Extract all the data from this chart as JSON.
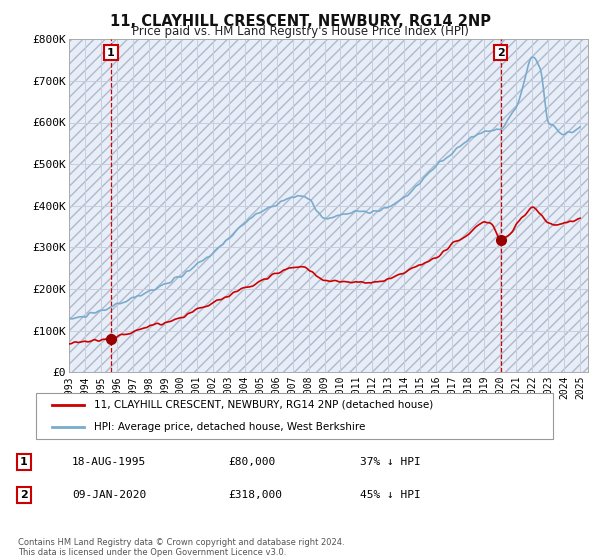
{
  "title": "11, CLAYHILL CRESCENT, NEWBURY, RG14 2NP",
  "subtitle": "Price paid vs. HM Land Registry's House Price Index (HPI)",
  "ylabel_ticks": [
    "£0",
    "£100K",
    "£200K",
    "£300K",
    "£400K",
    "£500K",
    "£600K",
    "£700K",
    "£800K"
  ],
  "ylim": [
    0,
    800000
  ],
  "xlim_start": 1993.0,
  "xlim_end": 2025.5,
  "transaction1": {
    "date_num": 1995.63,
    "price": 80000,
    "label": "1",
    "date_str": "18-AUG-1995",
    "price_str": "£80,000",
    "note": "37% ↓ HPI"
  },
  "transaction2": {
    "date_num": 2020.03,
    "price": 318000,
    "label": "2",
    "date_str": "09-JAN-2020",
    "price_str": "£318,000",
    "note": "45% ↓ HPI"
  },
  "red_line_color": "#cc0000",
  "blue_line_color": "#7aabcc",
  "dot_color": "#990000",
  "vline_color": "#cc0000",
  "grid_color": "#c8d0e0",
  "bg_color": "#e8eef8",
  "legend_label_red": "11, CLAYHILL CRESCENT, NEWBURY, RG14 2NP (detached house)",
  "legend_label_blue": "HPI: Average price, detached house, West Berkshire",
  "footer": "Contains HM Land Registry data © Crown copyright and database right 2024.\nThis data is licensed under the Open Government Licence v3.0.",
  "x_tick_years": [
    1993,
    1994,
    1995,
    1996,
    1997,
    1998,
    1999,
    2000,
    2001,
    2002,
    2003,
    2004,
    2005,
    2006,
    2007,
    2008,
    2009,
    2010,
    2011,
    2012,
    2013,
    2014,
    2015,
    2016,
    2017,
    2018,
    2019,
    2020,
    2021,
    2022,
    2023,
    2024,
    2025
  ]
}
